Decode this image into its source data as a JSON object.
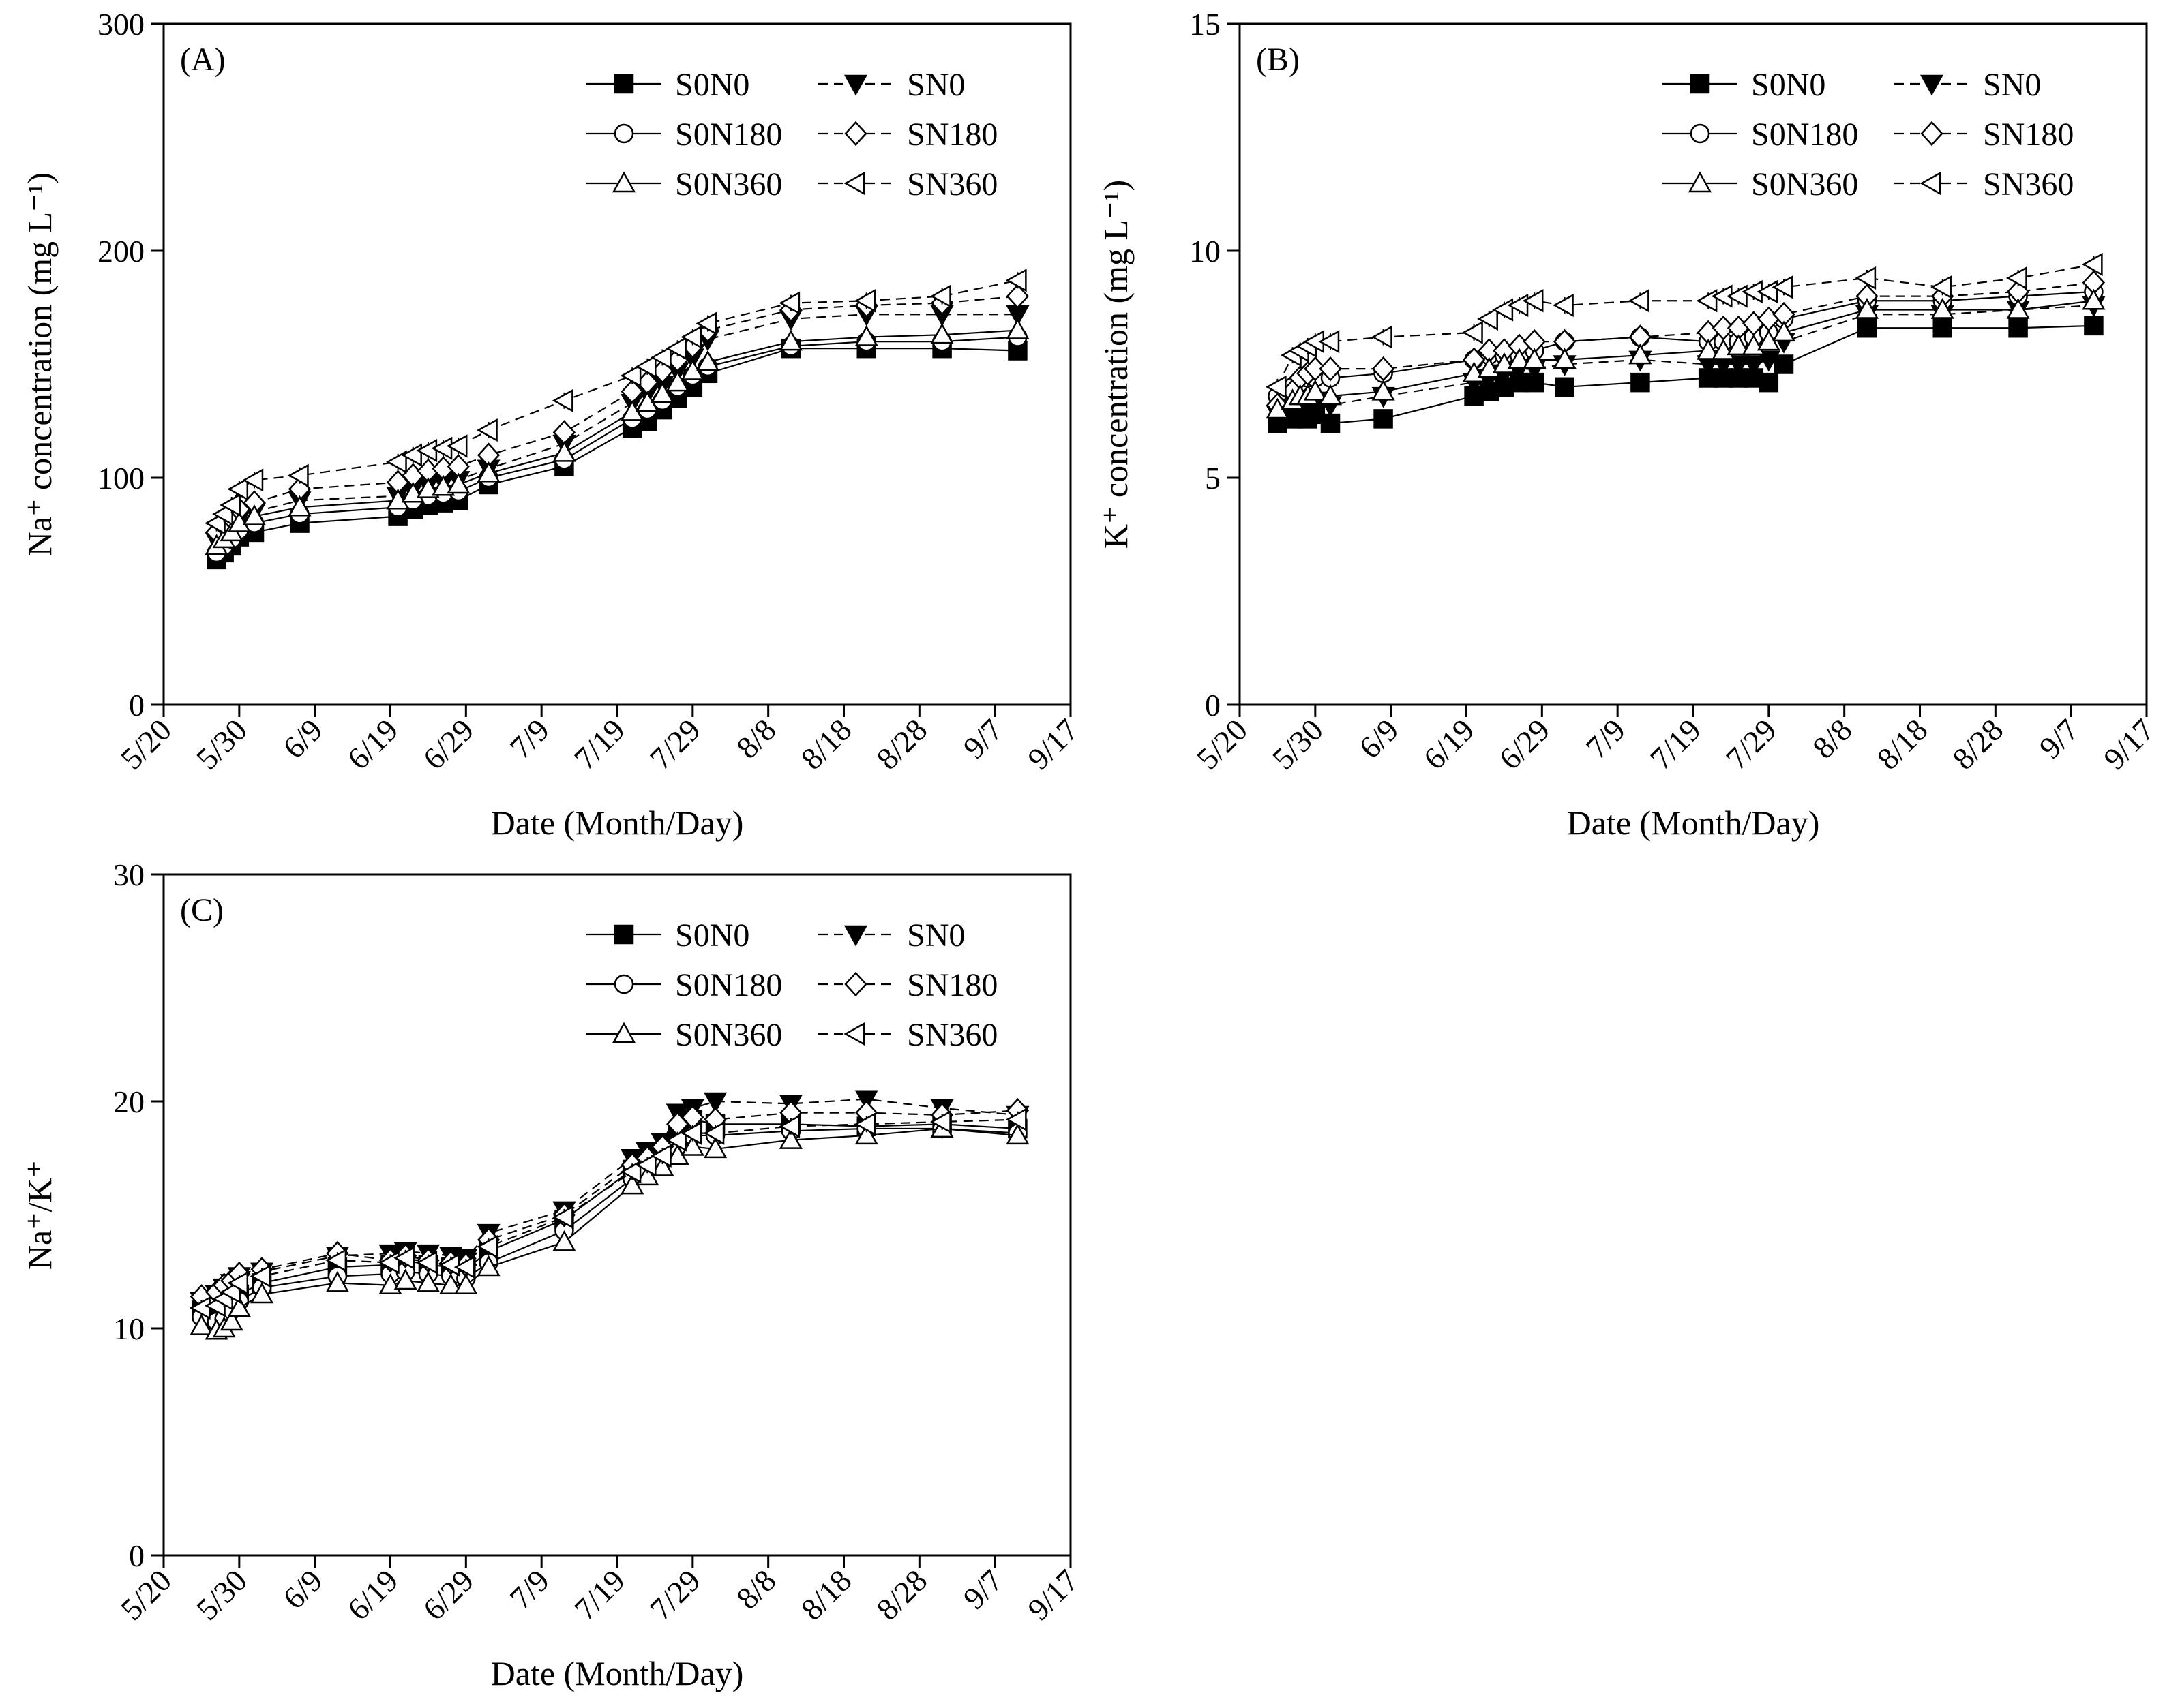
{
  "legend_entries": [
    "S0N0",
    "SN0",
    "S0N180",
    "SN180",
    "S0N360",
    "SN360"
  ],
  "series_styles": {
    "S0N0": {
      "marker": "square",
      "fill": "#000000",
      "line": "solid"
    },
    "SN0": {
      "marker": "triangle-down",
      "fill": "#000000",
      "line": "dashed"
    },
    "S0N180": {
      "marker": "circle",
      "fill": "#ffffff",
      "line": "solid"
    },
    "SN180": {
      "marker": "diamond",
      "fill": "#ffffff",
      "line": "dashed"
    },
    "S0N360": {
      "marker": "triangle-up",
      "fill": "#ffffff",
      "line": "solid"
    },
    "SN360": {
      "marker": "triangle-left",
      "fill": "#ffffff",
      "line": "dashed"
    }
  },
  "chart_data": [
    {
      "type": "line",
      "panel_label": "(A)",
      "xlabel": "Date (Month/Day)",
      "ylabel": "Na⁺ concentration (mg L⁻¹)",
      "ylim": [
        0,
        300
      ],
      "yticks": [
        0,
        100,
        200,
        300
      ],
      "xlim": [
        0,
        120
      ],
      "xticks": [
        0,
        10,
        20,
        30,
        40,
        50,
        60,
        70,
        80,
        90,
        100,
        110,
        120
      ],
      "xticklabels": [
        "5/20",
        "5/30",
        "6/9",
        "6/19",
        "6/29",
        "7/9",
        "7/19",
        "7/29",
        "8/8",
        "8/18",
        "8/28",
        "9/7",
        "9/17"
      ],
      "x": [
        7,
        8,
        9,
        10,
        12,
        18,
        31,
        33,
        35,
        37,
        39,
        43,
        53,
        62,
        64,
        66,
        68,
        70,
        72,
        83,
        93,
        103,
        113
      ],
      "series": [
        {
          "name": "S0N0",
          "values": [
            64,
            67,
            70,
            74,
            76,
            80,
            83,
            86,
            88,
            89,
            90,
            97,
            105,
            122,
            125,
            130,
            135,
            140,
            146,
            157,
            157,
            157,
            156
          ]
        },
        {
          "name": "SN0",
          "values": [
            72,
            75,
            78,
            82,
            85,
            90,
            92,
            95,
            97,
            98,
            99,
            104,
            115,
            133,
            137,
            141,
            147,
            153,
            161,
            170,
            172,
            172,
            172
          ]
        },
        {
          "name": "S0N180",
          "values": [
            67,
            70,
            73,
            77,
            80,
            84,
            87,
            90,
            92,
            93,
            94,
            100,
            108,
            126,
            130,
            134,
            140,
            145,
            149,
            158,
            160,
            160,
            162
          ]
        },
        {
          "name": "SN180",
          "values": [
            76,
            79,
            82,
            86,
            89,
            95,
            98,
            101,
            103,
            104,
            105,
            110,
            120,
            138,
            142,
            147,
            152,
            158,
            165,
            174,
            176,
            177,
            180
          ]
        },
        {
          "name": "S0N360",
          "values": [
            70,
            73,
            76,
            80,
            83,
            87,
            90,
            93,
            95,
            96,
            97,
            102,
            111,
            129,
            133,
            137,
            142,
            147,
            151,
            160,
            162,
            163,
            165
          ]
        },
        {
          "name": "SN360",
          "values": [
            80,
            84,
            88,
            95,
            99,
            101,
            107,
            110,
            112,
            113,
            114,
            121,
            134,
            145,
            149,
            153,
            157,
            162,
            168,
            177,
            178,
            180,
            187
          ]
        }
      ]
    },
    {
      "type": "line",
      "panel_label": "(B)",
      "xlabel": "Date (Month/Day)",
      "ylabel": "K⁺ concentration (mg L⁻¹)",
      "ylim": [
        0,
        15
      ],
      "yticks": [
        0,
        5,
        10,
        15
      ],
      "xlim": [
        0,
        120
      ],
      "xticks": [
        0,
        10,
        20,
        30,
        40,
        50,
        60,
        70,
        80,
        90,
        100,
        110,
        120
      ],
      "xticklabels": [
        "5/20",
        "5/30",
        "6/9",
        "6/19",
        "6/29",
        "7/9",
        "7/19",
        "7/29",
        "8/8",
        "8/18",
        "8/28",
        "9/7",
        "9/17"
      ],
      "x": [
        5,
        7,
        8,
        9,
        10,
        12,
        19,
        31,
        33,
        35,
        37,
        39,
        43,
        53,
        62,
        64,
        66,
        68,
        70,
        72,
        83,
        93,
        103,
        113
      ],
      "series": [
        {
          "name": "S0N0",
          "values": [
            6.2,
            6.3,
            6.4,
            6.3,
            6.4,
            6.2,
            6.3,
            6.8,
            6.9,
            7.0,
            7.1,
            7.1,
            7.0,
            7.1,
            7.2,
            7.2,
            7.2,
            7.2,
            7.1,
            7.5,
            8.3,
            8.3,
            8.3,
            8.35
          ]
        },
        {
          "name": "SN0",
          "values": [
            6.4,
            6.5,
            6.6,
            6.7,
            6.7,
            6.6,
            6.8,
            7.1,
            7.2,
            7.3,
            7.4,
            7.4,
            7.5,
            7.6,
            7.5,
            7.5,
            7.5,
            7.5,
            7.6,
            8.0,
            8.6,
            8.6,
            8.7,
            8.8
          ]
        },
        {
          "name": "S0N180",
          "values": [
            6.8,
            7.0,
            7.1,
            7.2,
            7.2,
            7.2,
            7.3,
            7.6,
            7.7,
            7.7,
            7.7,
            7.8,
            8.0,
            8.1,
            8.0,
            8.0,
            8.0,
            8.1,
            8.2,
            8.5,
            8.9,
            8.9,
            9.0,
            9.1
          ]
        },
        {
          "name": "SN180",
          "values": [
            6.6,
            6.9,
            7.2,
            7.3,
            7.4,
            7.4,
            7.4,
            7.6,
            7.8,
            7.8,
            7.9,
            8.0,
            8.0,
            8.1,
            8.2,
            8.3,
            8.3,
            8.4,
            8.5,
            8.6,
            9.0,
            9.0,
            9.1,
            9.3
          ]
        },
        {
          "name": "S0N360",
          "values": [
            6.5,
            6.7,
            6.8,
            6.8,
            6.9,
            6.8,
            6.9,
            7.3,
            7.4,
            7.5,
            7.6,
            7.6,
            7.6,
            7.7,
            7.8,
            7.8,
            7.9,
            7.9,
            8.0,
            8.2,
            8.7,
            8.7,
            8.7,
            8.9
          ]
        },
        {
          "name": "SN360",
          "values": [
            7.0,
            7.7,
            7.8,
            7.9,
            8.0,
            8.0,
            8.1,
            8.2,
            8.5,
            8.7,
            8.8,
            8.9,
            8.8,
            8.9,
            8.9,
            9.0,
            9.0,
            9.1,
            9.1,
            9.2,
            9.4,
            9.2,
            9.4,
            9.7
          ]
        }
      ]
    },
    {
      "type": "line",
      "panel_label": "(C)",
      "xlabel": "Date (Month/Day)",
      "ylabel": "Na⁺/K⁺",
      "ylim": [
        0,
        30
      ],
      "yticks": [
        0,
        10,
        20,
        30
      ],
      "xlim": [
        0,
        120
      ],
      "xticks": [
        0,
        10,
        20,
        30,
        40,
        50,
        60,
        70,
        80,
        90,
        100,
        110,
        120
      ],
      "xticklabels": [
        "5/20",
        "5/30",
        "6/9",
        "6/19",
        "6/29",
        "7/9",
        "7/19",
        "7/29",
        "8/8",
        "8/18",
        "8/28",
        "9/7",
        "9/17"
      ],
      "x": [
        5,
        7,
        8,
        9,
        10,
        13,
        23,
        30,
        32,
        35,
        38,
        40,
        43,
        53,
        62,
        64,
        66,
        68,
        70,
        73,
        83,
        93,
        103,
        113
      ],
      "series": [
        {
          "name": "S0N0",
          "values": [
            10.8,
            10.5,
            10.6,
            11.0,
            11.5,
            12.0,
            12.7,
            12.8,
            13.0,
            12.8,
            12.7,
            12.6,
            13.4,
            14.8,
            17.0,
            17.3,
            17.8,
            18.5,
            19.2,
            19.0,
            19.0,
            18.9,
            19.0,
            18.8
          ]
        },
        {
          "name": "SN0",
          "values": [
            11.2,
            11.5,
            11.8,
            12.0,
            12.3,
            12.5,
            13.2,
            13.3,
            13.4,
            13.3,
            13.2,
            13.1,
            14.2,
            15.2,
            17.5,
            17.8,
            18.2,
            19.5,
            19.7,
            20.0,
            19.9,
            20.1,
            19.7,
            19.4
          ]
        },
        {
          "name": "S0N180",
          "values": [
            10.5,
            10.3,
            10.4,
            10.8,
            11.2,
            11.8,
            12.3,
            12.4,
            12.5,
            12.4,
            12.3,
            12.2,
            12.9,
            14.3,
            16.6,
            17.0,
            17.4,
            18.0,
            18.5,
            18.5,
            18.7,
            18.8,
            18.8,
            18.6
          ]
        },
        {
          "name": "SN180",
          "values": [
            11.4,
            11.6,
            11.9,
            12.1,
            12.4,
            12.6,
            13.3,
            13.0,
            13.2,
            13.0,
            12.9,
            12.8,
            13.9,
            15.0,
            17.2,
            17.5,
            18.0,
            19.0,
            19.3,
            19.2,
            19.5,
            19.5,
            19.4,
            19.6
          ]
        },
        {
          "name": "S0N360",
          "values": [
            10.1,
            9.9,
            10.0,
            10.3,
            10.9,
            11.5,
            12.0,
            11.9,
            12.1,
            12.0,
            11.9,
            11.9,
            12.7,
            13.8,
            16.3,
            16.7,
            17.1,
            17.6,
            18.0,
            17.9,
            18.3,
            18.5,
            18.8,
            18.5
          ]
        },
        {
          "name": "SN360",
          "values": [
            10.9,
            11.0,
            11.3,
            11.6,
            12.0,
            12.3,
            13.0,
            12.9,
            13.1,
            12.9,
            12.8,
            12.7,
            13.6,
            14.9,
            16.9,
            17.2,
            17.6,
            18.3,
            18.6,
            18.6,
            18.9,
            19.0,
            19.1,
            19.2
          ]
        }
      ]
    }
  ]
}
